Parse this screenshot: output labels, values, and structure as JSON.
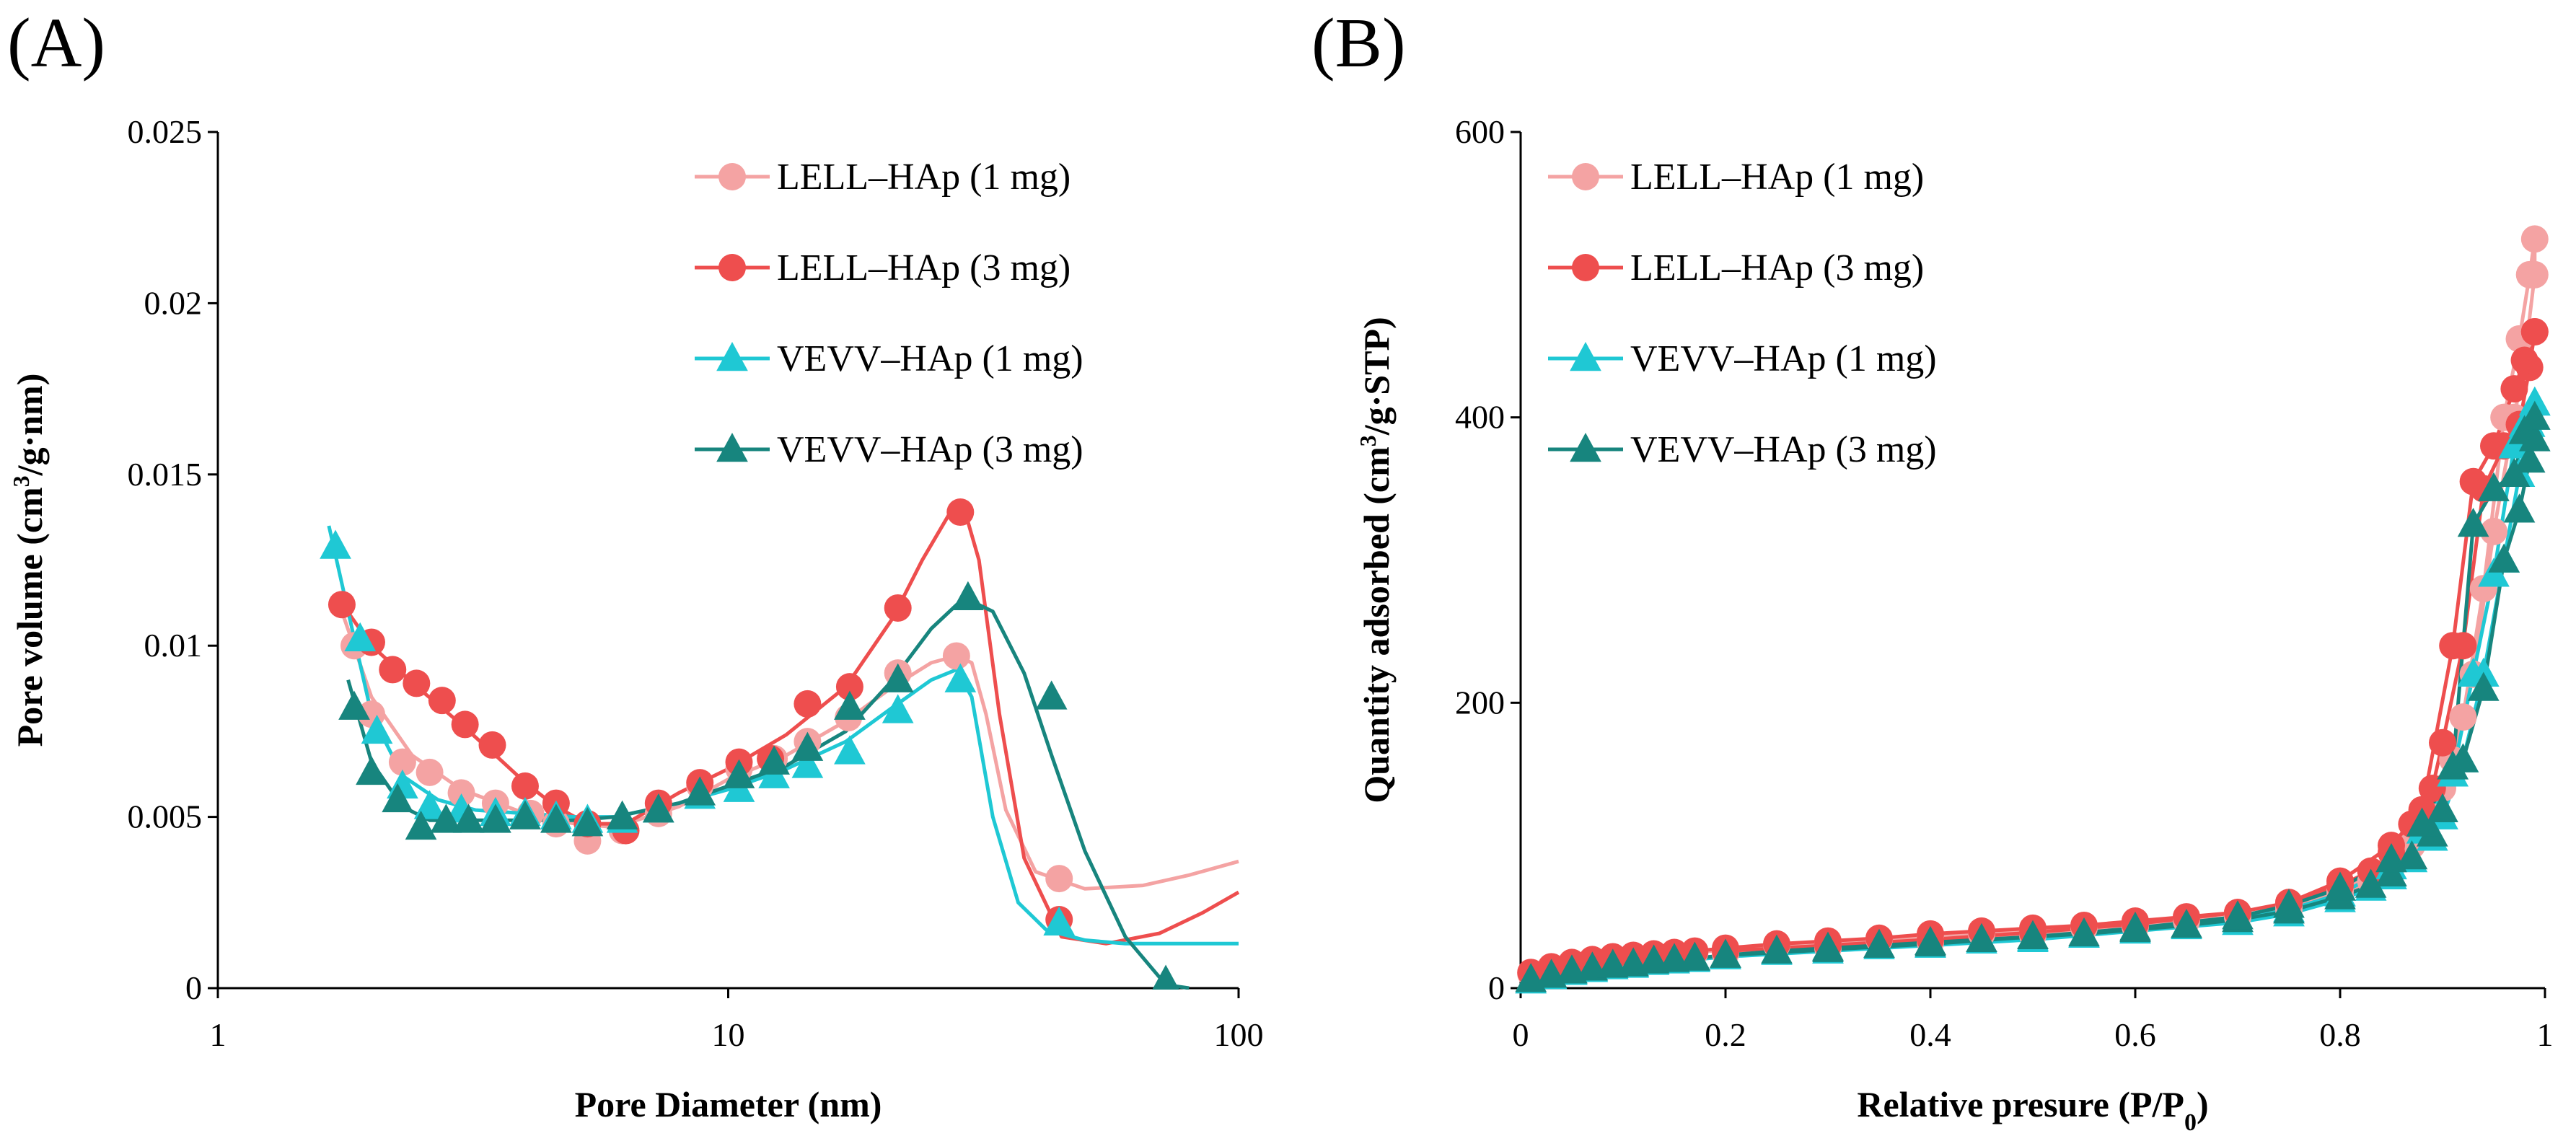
{
  "chart_data": [
    {
      "panel_label": "(A)",
      "type": "scatter",
      "title": "",
      "xlabel": "Pore Diameter (nm)",
      "ylabel_main": "Pore volume (cm",
      "ylabel_sup": "3",
      "ylabel_end": "/g·nm)",
      "xscale": "log",
      "xlim": [
        1,
        100
      ],
      "ylim": [
        0,
        0.025
      ],
      "xticks": [
        1,
        10,
        100
      ],
      "xtick_labels": [
        "1",
        "10",
        "100"
      ],
      "yticks": [
        0,
        0.005,
        0.01,
        0.015,
        0.02,
        0.025
      ],
      "ytick_labels": [
        "0",
        "0.005",
        "0.01",
        "0.015",
        "0.02",
        "0.025"
      ],
      "legend_position": "top-right",
      "series": [
        {
          "name": "LELL–HAp (1 mg)",
          "color": "#F4A3A3",
          "marker": "circle",
          "x": [
            1.85,
            2.0,
            2.3,
            2.6,
            3.0,
            3.5,
            4.1,
            4.6,
            5.3,
            6.2,
            7.3,
            8.8,
            10.5,
            12.3,
            14.3,
            17.2,
            21.5,
            28.0,
            44.5
          ],
          "y": [
            0.01,
            0.008,
            0.0066,
            0.0063,
            0.0057,
            0.0054,
            0.0051,
            0.0048,
            0.0043,
            0.0046,
            0.0051,
            0.0059,
            0.0064,
            0.0067,
            0.0072,
            0.0079,
            0.0092,
            0.0097,
            0.0032
          ],
          "fit_x": [
            1.75,
            2.0,
            2.4,
            3.0,
            4.0,
            5.0,
            6.0,
            8.0,
            10.0,
            13.0,
            17.0,
            21.0,
            25.0,
            28.0,
            30.0,
            32.0,
            35.0,
            40.0,
            50.0,
            65.0,
            80.0,
            100.0
          ],
          "fit_y": [
            0.011,
            0.0085,
            0.0068,
            0.0058,
            0.0051,
            0.0048,
            0.0047,
            0.0053,
            0.0061,
            0.0068,
            0.0078,
            0.0088,
            0.0095,
            0.0097,
            0.0095,
            0.008,
            0.0052,
            0.0034,
            0.0029,
            0.003,
            0.0033,
            0.0037
          ]
        },
        {
          "name": "LELL–HAp (3 mg)",
          "color": "#EE4E4E",
          "marker": "circle",
          "x": [
            1.75,
            2.0,
            2.2,
            2.45,
            2.75,
            3.05,
            3.45,
            4.0,
            4.6,
            5.3,
            6.3,
            7.3,
            8.8,
            10.5,
            12.1,
            14.3,
            17.3,
            21.5,
            28.5,
            44.5
          ],
          "y": [
            0.0112,
            0.0101,
            0.0093,
            0.0089,
            0.0084,
            0.0077,
            0.0071,
            0.0059,
            0.0054,
            0.0048,
            0.0046,
            0.0054,
            0.006,
            0.0066,
            0.0067,
            0.0083,
            0.0088,
            0.0111,
            0.0139,
            0.002
          ],
          "fit_x": [
            1.7,
            2.0,
            2.5,
            3.0,
            3.5,
            4.0,
            4.6,
            5.3,
            6.3,
            8.0,
            10.0,
            13.0,
            17.0,
            21.0,
            24.0,
            27.0,
            29.0,
            31.0,
            34.0,
            38.0,
            45.0,
            55.0,
            70.0,
            85.0,
            100.0
          ],
          "fit_y": [
            0.0115,
            0.01,
            0.0087,
            0.0077,
            0.0068,
            0.006,
            0.0053,
            0.0048,
            0.0048,
            0.0057,
            0.0064,
            0.0074,
            0.0088,
            0.0108,
            0.0125,
            0.0138,
            0.014,
            0.0125,
            0.008,
            0.0038,
            0.0015,
            0.0013,
            0.0016,
            0.0022,
            0.0028
          ]
        },
        {
          "name": "VEVV–HAp (1 mg)",
          "color": "#1FC8D4",
          "marker": "triangle",
          "x": [
            1.7,
            1.9,
            2.05,
            2.3,
            2.6,
            3.0,
            3.5,
            4.0,
            4.6,
            5.3,
            6.2,
            7.3,
            8.8,
            10.5,
            12.3,
            14.3,
            17.3,
            21.5,
            28.5,
            44.5
          ],
          "y": [
            0.0129,
            0.0102,
            0.0075,
            0.0059,
            0.0053,
            0.0052,
            0.0051,
            0.0051,
            0.005,
            0.0049,
            0.0049,
            0.0052,
            0.0056,
            0.0058,
            0.0062,
            0.0065,
            0.0069,
            0.0081,
            0.009,
            0.0019
          ],
          "fit_x": [
            1.65,
            1.8,
            2.0,
            2.3,
            2.7,
            3.2,
            4.0,
            5.0,
            6.0,
            8.0,
            10.0,
            13.0,
            17.0,
            21.0,
            25.0,
            28.0,
            30.0,
            33.0,
            37.0,
            42.0,
            50.0,
            60.0,
            75.0,
            100.0
          ],
          "fit_y": [
            0.0135,
            0.011,
            0.008,
            0.0062,
            0.0055,
            0.0052,
            0.0051,
            0.005,
            0.005,
            0.0054,
            0.0058,
            0.0064,
            0.0072,
            0.0082,
            0.009,
            0.0093,
            0.0085,
            0.005,
            0.0025,
            0.0017,
            0.0014,
            0.0013,
            0.0013,
            0.0013
          ]
        },
        {
          "name": "VEVV–HAp (3 mg)",
          "color": "#17857E",
          "marker": "triangle",
          "x": [
            1.85,
            2.0,
            2.25,
            2.5,
            2.8,
            3.1,
            3.5,
            4.0,
            4.6,
            5.3,
            6.2,
            7.3,
            8.8,
            10.5,
            12.3,
            14.3,
            17.3,
            21.5,
            29.5,
            43.0,
            72.0
          ],
          "y": [
            0.0082,
            0.0063,
            0.0055,
            0.0047,
            0.0049,
            0.0049,
            0.0049,
            0.005,
            0.0049,
            0.0048,
            0.005,
            0.0052,
            0.0057,
            0.0062,
            0.0066,
            0.007,
            0.0082,
            0.009,
            0.0114,
            0.0085,
            0.0002
          ],
          "fit_x": [
            1.8,
            2.0,
            2.3,
            2.6,
            3.0,
            4.0,
            5.0,
            6.0,
            8.0,
            10.0,
            13.0,
            17.0,
            21.0,
            25.0,
            29.0,
            33.0,
            38.0,
            43.0,
            50.0,
            60.0,
            72.0,
            80.0
          ],
          "fit_y": [
            0.009,
            0.0066,
            0.0053,
            0.0049,
            0.0049,
            0.0049,
            0.0049,
            0.005,
            0.0054,
            0.0059,
            0.0065,
            0.0075,
            0.009,
            0.0105,
            0.0114,
            0.011,
            0.0092,
            0.0068,
            0.004,
            0.0015,
            0.0001,
            0.0
          ]
        }
      ]
    },
    {
      "panel_label": "(B)",
      "type": "scatter",
      "title": "",
      "xlabel_main": "Relative presure (P/P",
      "xlabel_sub": "0",
      "xlabel_end": ")",
      "ylabel_main": "Quantity adsorbed (cm",
      "ylabel_sup": "3",
      "ylabel_end": "/g·STP)",
      "xlim": [
        0,
        1
      ],
      "ylim": [
        0,
        600
      ],
      "xticks": [
        0,
        0.2,
        0.4,
        0.6,
        0.8,
        1
      ],
      "xtick_labels": [
        "0",
        "0.2",
        "0.4",
        "0.6",
        "0.8",
        "1"
      ],
      "yticks": [
        0,
        200,
        400,
        600
      ],
      "ytick_labels": [
        "0",
        "200",
        "400",
        "600"
      ],
      "legend_position": "top-left",
      "series": [
        {
          "name": "LELL–HAp (1 mg)",
          "color": "#F4A3A3",
          "marker": "circle",
          "x": [
            0.01,
            0.03,
            0.05,
            0.07,
            0.09,
            0.11,
            0.13,
            0.15,
            0.17,
            0.2,
            0.25,
            0.3,
            0.35,
            0.4,
            0.45,
            0.5,
            0.55,
            0.6,
            0.65,
            0.7,
            0.75,
            0.8,
            0.83,
            0.85,
            0.87,
            0.89,
            0.9,
            0.92,
            0.94,
            0.96,
            0.975,
            0.985,
            0.99,
            0.99,
            0.98,
            0.97,
            0.95,
            0.93,
            0.91,
            0.88,
            0.85,
            0.8,
            0.75,
            0.7,
            0.6,
            0.5,
            0.4,
            0.3,
            0.2
          ],
          "y": [
            10,
            14,
            17,
            19,
            21,
            22,
            23,
            24,
            25,
            27,
            30,
            32,
            34,
            36,
            38,
            40,
            42,
            44,
            47,
            50,
            55,
            65,
            75,
            85,
            100,
            120,
            140,
            190,
            280,
            400,
            455,
            500,
            525,
            500,
            440,
            400,
            320,
            220,
            160,
            110,
            85,
            68,
            57,
            50,
            43,
            37,
            32,
            28,
            24
          ]
        },
        {
          "name": "LELL–HAp (3 mg)",
          "color": "#EE4E4E",
          "marker": "circle",
          "x": [
            0.01,
            0.03,
            0.05,
            0.07,
            0.09,
            0.11,
            0.13,
            0.15,
            0.17,
            0.2,
            0.25,
            0.3,
            0.35,
            0.4,
            0.45,
            0.5,
            0.55,
            0.6,
            0.65,
            0.7,
            0.75,
            0.8,
            0.83,
            0.85,
            0.87,
            0.89,
            0.9,
            0.92,
            0.94,
            0.96,
            0.975,
            0.985,
            0.99,
            0.99,
            0.98,
            0.97,
            0.95,
            0.93,
            0.91,
            0.88,
            0.85,
            0.8,
            0.75,
            0.7,
            0.6,
            0.5,
            0.4,
            0.3,
            0.2
          ],
          "y": [
            11,
            15,
            18,
            20,
            22,
            23,
            24,
            25,
            26,
            28,
            31,
            33,
            35,
            38,
            40,
            42,
            44,
            47,
            50,
            53,
            60,
            72,
            82,
            95,
            115,
            140,
            172,
            240,
            350,
            380,
            395,
            435,
            460,
            460,
            440,
            420,
            380,
            355,
            240,
            125,
            100,
            75,
            60,
            53,
            45,
            39,
            34,
            30,
            26
          ]
        },
        {
          "name": "VEVV–HAp (1 mg)",
          "color": "#1FC8D4",
          "marker": "triangle",
          "x": [
            0.01,
            0.03,
            0.05,
            0.07,
            0.09,
            0.11,
            0.13,
            0.15,
            0.17,
            0.2,
            0.25,
            0.3,
            0.35,
            0.4,
            0.45,
            0.5,
            0.55,
            0.6,
            0.65,
            0.7,
            0.75,
            0.8,
            0.83,
            0.85,
            0.87,
            0.89,
            0.9,
            0.92,
            0.94,
            0.96,
            0.975,
            0.985,
            0.99,
            0.99,
            0.98,
            0.97,
            0.95,
            0.93,
            0.91,
            0.88,
            0.85,
            0.8,
            0.75,
            0.7,
            0.6,
            0.5,
            0.4,
            0.3,
            0.2
          ],
          "y": [
            5,
            8,
            11,
            13,
            15,
            16,
            18,
            19,
            20,
            22,
            25,
            27,
            29,
            31,
            33,
            35,
            37,
            40,
            43,
            46,
            52,
            62,
            70,
            78,
            90,
            105,
            120,
            160,
            220,
            300,
            360,
            395,
            410,
            410,
            395,
            380,
            290,
            220,
            150,
            110,
            85,
            66,
            55,
            48,
            40,
            34,
            30,
            26,
            22
          ]
        },
        {
          "name": "VEVV–HAp (3 mg)",
          "color": "#17857E",
          "marker": "triangle",
          "x": [
            0.01,
            0.03,
            0.05,
            0.07,
            0.09,
            0.11,
            0.13,
            0.15,
            0.17,
            0.2,
            0.25,
            0.3,
            0.35,
            0.4,
            0.45,
            0.5,
            0.55,
            0.6,
            0.65,
            0.7,
            0.75,
            0.8,
            0.83,
            0.85,
            0.87,
            0.89,
            0.9,
            0.92,
            0.94,
            0.96,
            0.975,
            0.985,
            0.99,
            0.99,
            0.98,
            0.97,
            0.95,
            0.93,
            0.91,
            0.88,
            0.85,
            0.8,
            0.75,
            0.7,
            0.6,
            0.5,
            0.4,
            0.3,
            0.2
          ],
          "y": [
            6,
            9,
            12,
            14,
            16,
            17,
            19,
            20,
            21,
            23,
            26,
            28,
            30,
            32,
            34,
            36,
            38,
            41,
            44,
            48,
            54,
            64,
            72,
            80,
            92,
            108,
            125,
            160,
            210,
            300,
            335,
            370,
            385,
            400,
            390,
            360,
            350,
            325,
            155,
            115,
            90,
            70,
            58,
            50,
            42,
            36,
            31,
            27,
            23
          ]
        }
      ]
    }
  ]
}
